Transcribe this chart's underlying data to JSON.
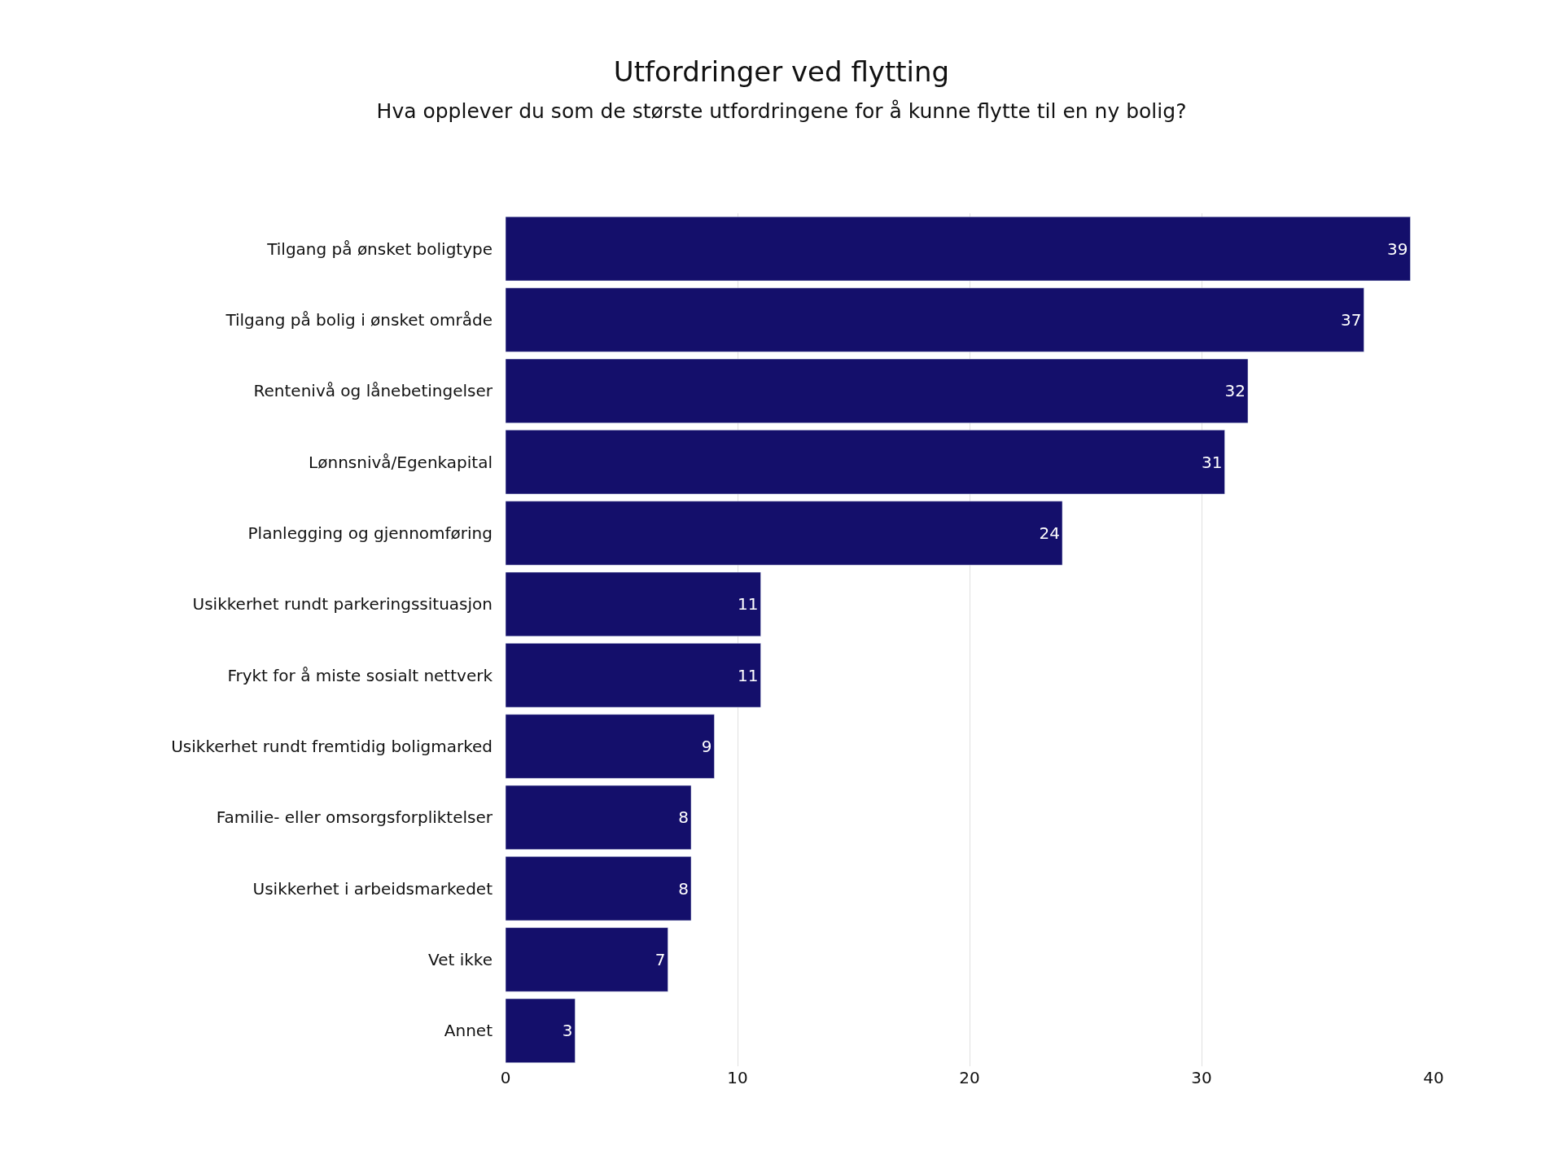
{
  "chart_data": {
    "type": "bar",
    "orientation": "horizontal",
    "title": "Utfordringer ved flytting",
    "subtitle": "Hva opplever du som de største utfordringene for å kunne flytte til en ny bolig?",
    "categories": [
      "Tilgang på ønsket boligtype",
      "Tilgang på bolig i ønsket område",
      "Rentenivå og lånebetingelser",
      "Lønnsnivå/Egenkapital",
      "Planlegging og gjennomføring",
      "Usikkerhet rundt parkeringssituasjon",
      "Frykt for å miste sosialt nettverk",
      "Usikkerhet rundt fremtidig boligmarked",
      "Familie- eller omsorgsforpliktelser",
      "Usikkerhet i arbeidsmarkedet",
      "Vet ikke",
      "Annet"
    ],
    "values": [
      39,
      37,
      32,
      31,
      24,
      11,
      11,
      9,
      8,
      8,
      7,
      3
    ],
    "color": "#140f6b",
    "xlim": [
      0,
      40
    ],
    "xticks": [
      0,
      10,
      20,
      30,
      40
    ],
    "grid": "x",
    "data_labels": true,
    "legend": false
  }
}
